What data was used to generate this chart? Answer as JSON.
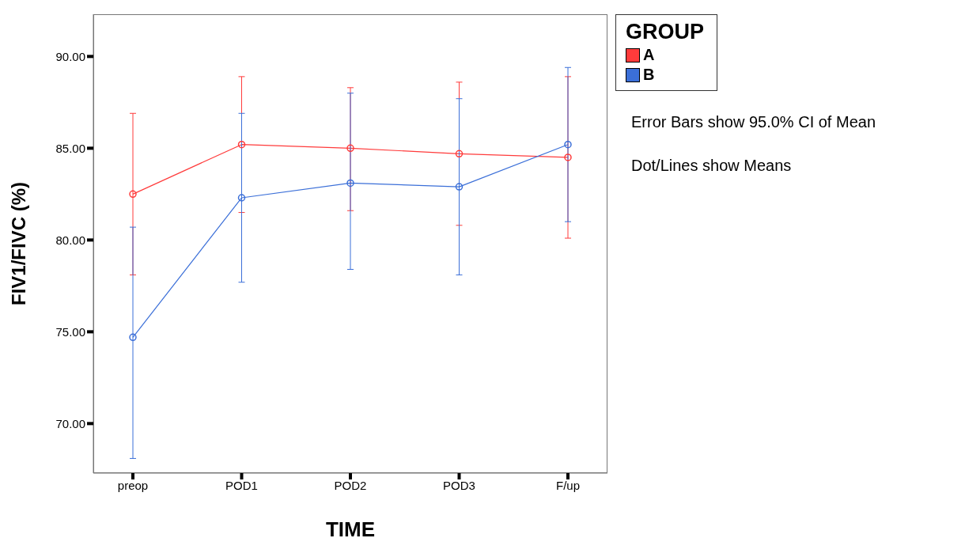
{
  "chart_data": {
    "type": "line",
    "xlabel": "TIME",
    "ylabel": "FIV1/FIVC (%)",
    "legend_title": "GROUP",
    "legend": "top right",
    "marker": "circle",
    "line_style": "solid",
    "categories": [
      "preop",
      "POD1",
      "POD2",
      "POD3",
      "F/up"
    ],
    "ylim": [
      67.3,
      92.3
    ],
    "yticks": [
      {
        "value": 70,
        "label": "70.00"
      },
      {
        "value": 75,
        "label": "75.00"
      },
      {
        "value": 80,
        "label": "80.00"
      },
      {
        "value": 85,
        "label": "85.00"
      },
      {
        "value": 90,
        "label": "90.00"
      }
    ],
    "series": [
      {
        "name": "A",
        "color": "#ff3b3b",
        "values": [
          82.5,
          85.2,
          85.0,
          84.7,
          84.5
        ],
        "errors": [
          [
            78.1,
            86.9
          ],
          [
            81.5,
            88.9
          ],
          [
            81.6,
            88.3
          ],
          [
            80.8,
            88.6
          ],
          [
            80.1,
            88.9
          ]
        ]
      },
      {
        "name": "B",
        "color": "#3b6fd8",
        "values": [
          74.7,
          82.3,
          83.1,
          82.9,
          85.2
        ],
        "errors": [
          [
            68.1,
            80.7
          ],
          [
            77.7,
            86.9
          ],
          [
            78.4,
            88.0
          ],
          [
            78.1,
            87.7
          ],
          [
            81.0,
            89.4
          ]
        ]
      }
    ],
    "annotations": [
      "Error Bars show 95.0% CI of Mean",
      "Dot/Lines show Means"
    ]
  }
}
